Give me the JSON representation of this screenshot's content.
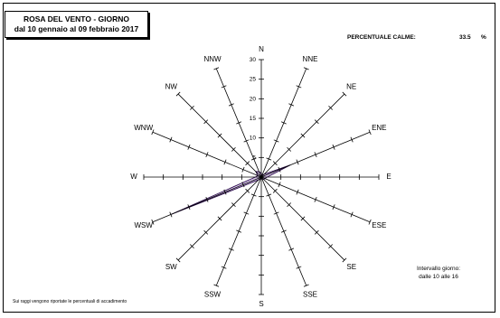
{
  "title": {
    "line1": "ROSA DEL VENTO - GIORNO",
    "line2": "dal 10 gennaio al 09 febbraio 2017"
  },
  "calm": {
    "label": "PERCENTUALE CALME:",
    "value": "33.5",
    "unit": "%"
  },
  "interval": {
    "line1": "Intervallo giorno:",
    "line2": "dalle 10 alle 16"
  },
  "footnote": "Sui raggi vengono riportate le percentuali di accadimento",
  "colors": {
    "fill": "#dcc9f0",
    "stroke": "#2a0a4a",
    "axis": "#000000"
  },
  "chart_data": {
    "type": "radar",
    "directions": [
      "N",
      "NNE",
      "NE",
      "ENE",
      "E",
      "ESE",
      "SE",
      "SSE",
      "S",
      "SSW",
      "SW",
      "WSW",
      "W",
      "WNW",
      "NW",
      "NNW"
    ],
    "values": [
      1,
      0.5,
      1,
      8,
      1.5,
      1,
      0.8,
      0.5,
      0.5,
      0.5,
      1,
      25,
      1.5,
      1,
      2,
      1.5
    ],
    "rmax": 30,
    "ticks": [
      5,
      10,
      15,
      20,
      25,
      30
    ],
    "tick_labels": [
      "5",
      "10",
      "15",
      "20",
      "25",
      "30"
    ]
  }
}
